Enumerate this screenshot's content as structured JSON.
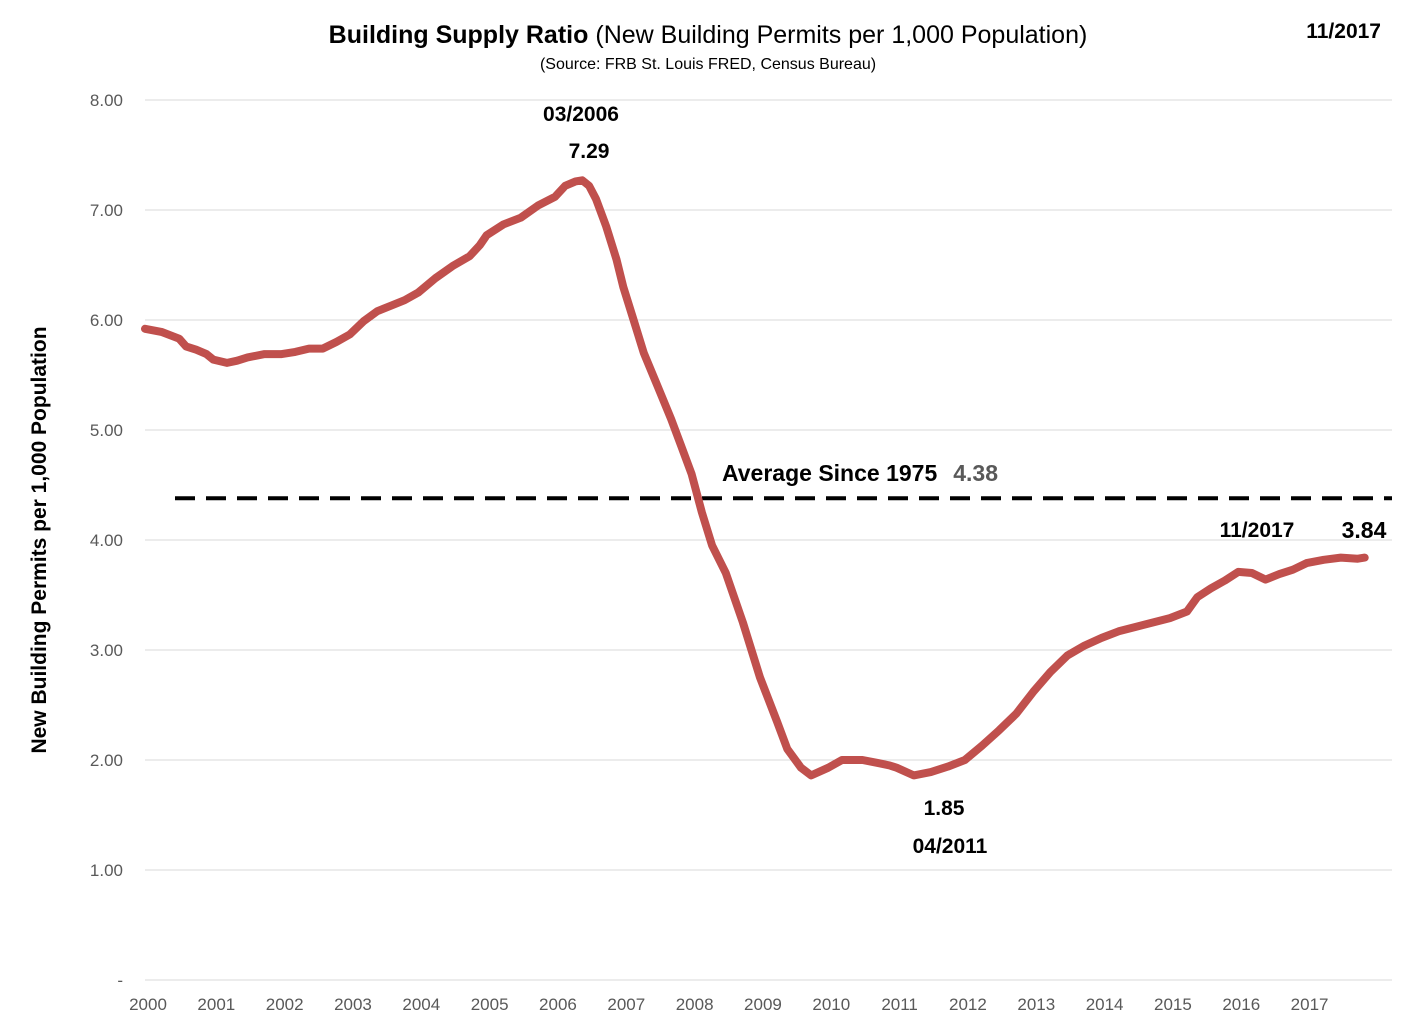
{
  "chart_data": {
    "type": "line",
    "title_bold": "Building Supply Ratio",
    "title_rest": "(New Building Permits per 1,000 Population)",
    "subtitle": "(Source: FRB St. Louis FRED, Census Bureau)",
    "date_stamp": "11/2017",
    "ylabel": "New Building Permits per 1,000 Population",
    "ylim": [
      0,
      8
    ],
    "y_ticks": [
      {
        "value": 0,
        "label": "-"
      },
      {
        "value": 1,
        "label": "1.00"
      },
      {
        "value": 2,
        "label": "2.00"
      },
      {
        "value": 3,
        "label": "3.00"
      },
      {
        "value": 4,
        "label": "4.00"
      },
      {
        "value": 5,
        "label": "5.00"
      },
      {
        "value": 6,
        "label": "6.00"
      },
      {
        "value": 7,
        "label": "7.00"
      },
      {
        "value": 8,
        "label": "8.00"
      }
    ],
    "xlim": [
      2000,
      2018.25
    ],
    "x_ticks": [
      "2000",
      "2001",
      "2002",
      "2003",
      "2004",
      "2005",
      "2006",
      "2007",
      "2008",
      "2009",
      "2010",
      "2011",
      "2012",
      "2013",
      "2014",
      "2015",
      "2016",
      "2017"
    ],
    "series": [
      {
        "name": "Building Supply Ratio",
        "color": "#c0504d",
        "points": [
          [
            2000.0,
            5.92
          ],
          [
            2000.25,
            5.89
          ],
          [
            2000.5,
            5.83
          ],
          [
            2000.6,
            5.76
          ],
          [
            2000.75,
            5.73
          ],
          [
            2000.9,
            5.69
          ],
          [
            2001.0,
            5.64
          ],
          [
            2001.2,
            5.61
          ],
          [
            2001.35,
            5.63
          ],
          [
            2001.5,
            5.66
          ],
          [
            2001.75,
            5.69
          ],
          [
            2002.0,
            5.69
          ],
          [
            2002.2,
            5.71
          ],
          [
            2002.4,
            5.74
          ],
          [
            2002.6,
            5.74
          ],
          [
            2002.8,
            5.8
          ],
          [
            2003.0,
            5.87
          ],
          [
            2003.2,
            5.99
          ],
          [
            2003.4,
            6.08
          ],
          [
            2003.6,
            6.13
          ],
          [
            2003.8,
            6.18
          ],
          [
            2004.0,
            6.25
          ],
          [
            2004.25,
            6.38
          ],
          [
            2004.5,
            6.49
          ],
          [
            2004.75,
            6.58
          ],
          [
            2004.9,
            6.68
          ],
          [
            2005.0,
            6.77
          ],
          [
            2005.25,
            6.87
          ],
          [
            2005.5,
            6.93
          ],
          [
            2005.75,
            7.04
          ],
          [
            2006.0,
            7.12
          ],
          [
            2006.15,
            7.22
          ],
          [
            2006.3,
            7.26
          ],
          [
            2006.4,
            7.27
          ],
          [
            2006.5,
            7.22
          ],
          [
            2006.6,
            7.1
          ],
          [
            2006.75,
            6.85
          ],
          [
            2006.9,
            6.55
          ],
          [
            2007.0,
            6.3
          ],
          [
            2007.15,
            6.0
          ],
          [
            2007.3,
            5.7
          ],
          [
            2007.5,
            5.4
          ],
          [
            2007.7,
            5.1
          ],
          [
            2007.85,
            4.85
          ],
          [
            2008.0,
            4.6
          ],
          [
            2008.15,
            4.25
          ],
          [
            2008.3,
            3.95
          ],
          [
            2008.5,
            3.7
          ],
          [
            2008.75,
            3.25
          ],
          [
            2009.0,
            2.75
          ],
          [
            2009.25,
            2.35
          ],
          [
            2009.4,
            2.1
          ],
          [
            2009.6,
            1.93
          ],
          [
            2009.75,
            1.86
          ],
          [
            2010.0,
            1.93
          ],
          [
            2010.2,
            2.0
          ],
          [
            2010.5,
            2.0
          ],
          [
            2010.75,
            1.97
          ],
          [
            2010.9,
            1.95
          ],
          [
            2011.0,
            1.93
          ],
          [
            2011.25,
            1.86
          ],
          [
            2011.5,
            1.89
          ],
          [
            2011.75,
            1.94
          ],
          [
            2012.0,
            2.0
          ],
          [
            2012.25,
            2.13
          ],
          [
            2012.5,
            2.27
          ],
          [
            2012.75,
            2.42
          ],
          [
            2013.0,
            2.62
          ],
          [
            2013.25,
            2.8
          ],
          [
            2013.5,
            2.95
          ],
          [
            2013.75,
            3.04
          ],
          [
            2014.0,
            3.11
          ],
          [
            2014.25,
            3.17
          ],
          [
            2014.5,
            3.21
          ],
          [
            2014.75,
            3.25
          ],
          [
            2015.0,
            3.29
          ],
          [
            2015.25,
            3.35
          ],
          [
            2015.4,
            3.48
          ],
          [
            2015.6,
            3.56
          ],
          [
            2015.8,
            3.63
          ],
          [
            2016.0,
            3.71
          ],
          [
            2016.2,
            3.7
          ],
          [
            2016.4,
            3.64
          ],
          [
            2016.6,
            3.69
          ],
          [
            2016.8,
            3.73
          ],
          [
            2017.0,
            3.79
          ],
          [
            2017.25,
            3.82
          ],
          [
            2017.5,
            3.84
          ],
          [
            2017.75,
            3.83
          ],
          [
            2017.85,
            3.84
          ]
        ]
      }
    ],
    "average": {
      "label": "Average Since 1975",
      "value": 4.38,
      "value_label": "4.38"
    },
    "annotations": {
      "peak_date": "03/2006",
      "peak_value": "7.29",
      "trough_value": "1.85",
      "trough_date": "04/2011",
      "latest_date": "11/2017",
      "latest_value": "3.84"
    }
  }
}
